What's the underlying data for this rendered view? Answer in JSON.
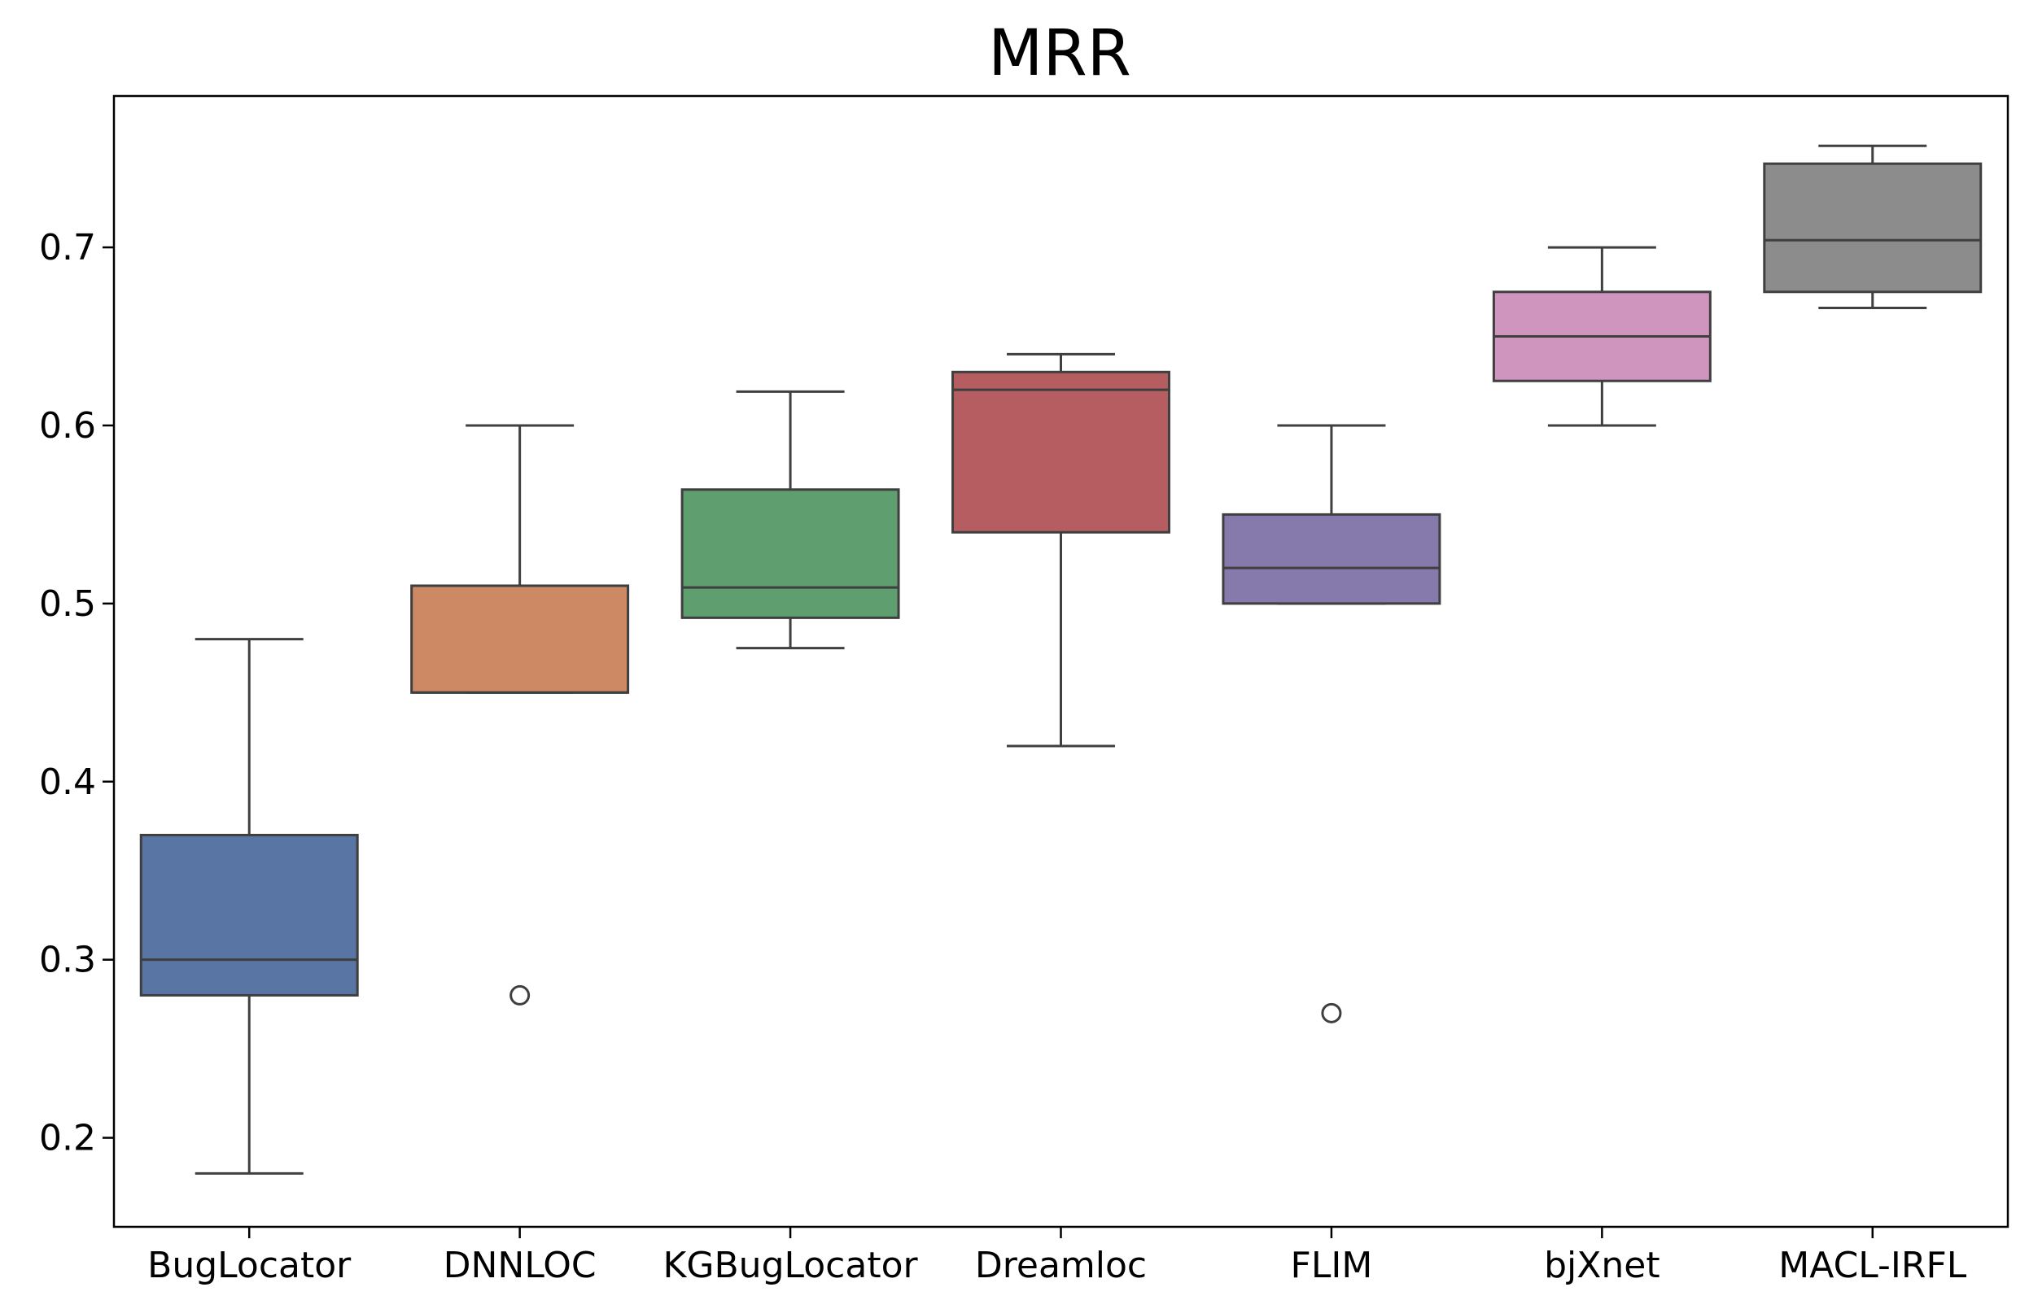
{
  "chart_data": {
    "type": "boxplot",
    "title": "MRR",
    "xlabel": "",
    "ylabel": "",
    "ylim": [
      0.15,
      0.785
    ],
    "yticks": [
      0.2,
      0.3,
      0.4,
      0.5,
      0.6,
      0.7
    ],
    "ytick_labels": [
      "0.2",
      "0.3",
      "0.4",
      "0.5",
      "0.6",
      "0.7"
    ],
    "grid": false,
    "line_color": "#3f3f3f",
    "categories": [
      "BugLocator",
      "DNNLOC",
      "KGBugLocator",
      "Dreamloc",
      "FLIM",
      "bjXnet",
      "MACL-IRFL"
    ],
    "boxes": [
      {
        "name": "BugLocator",
        "whisker_low": 0.18,
        "q1": 0.28,
        "median": 0.3,
        "q3": 0.37,
        "whisker_high": 0.48,
        "outliers": [],
        "color": "#5975a4"
      },
      {
        "name": "DNNLOC",
        "whisker_low": 0.45,
        "q1": 0.45,
        "median": 0.45,
        "q3": 0.51,
        "whisker_high": 0.6,
        "outliers": [
          0.28
        ],
        "color": "#cc8963"
      },
      {
        "name": "KGBugLocator",
        "whisker_low": 0.475,
        "q1": 0.492,
        "median": 0.509,
        "q3": 0.564,
        "whisker_high": 0.619,
        "outliers": [],
        "color": "#5f9e6e"
      },
      {
        "name": "Dreamloc",
        "whisker_low": 0.42,
        "q1": 0.54,
        "median": 0.62,
        "q3": 0.63,
        "whisker_high": 0.64,
        "outliers": [],
        "color": "#b55d60"
      },
      {
        "name": "FLIM",
        "whisker_low": 0.5,
        "q1": 0.5,
        "median": 0.52,
        "q3": 0.55,
        "whisker_high": 0.6,
        "outliers": [
          0.27
        ],
        "color": "#857aab"
      },
      {
        "name": "bjXnet",
        "whisker_low": 0.6,
        "q1": 0.625,
        "median": 0.65,
        "q3": 0.675,
        "whisker_high": 0.7,
        "outliers": [],
        "color": "#d095bf"
      },
      {
        "name": "MACL-IRFL",
        "whisker_low": 0.666,
        "q1": 0.675,
        "median": 0.704,
        "q3": 0.747,
        "whisker_high": 0.757,
        "outliers": [],
        "color": "#8c8c8c"
      }
    ]
  }
}
